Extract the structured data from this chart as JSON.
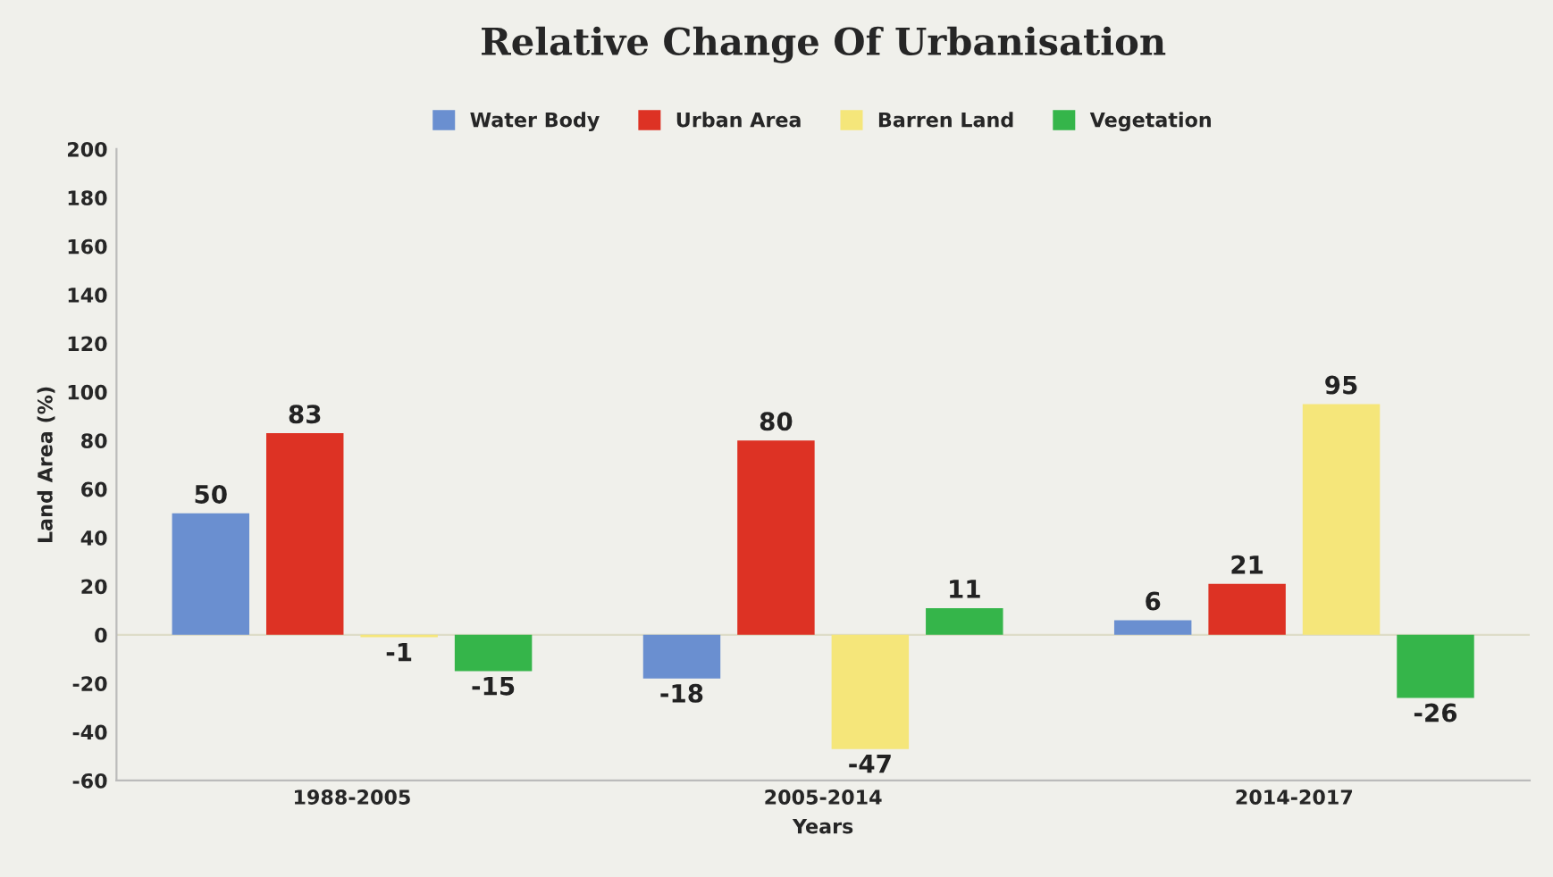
{
  "chart_data": {
    "type": "bar",
    "title": "Relative Change Of Urbanisation",
    "xlabel": "Years",
    "ylabel": "Land Area (%)",
    "categories": [
      "1988-2005",
      "2005-2014",
      "2014-2017"
    ],
    "series": [
      {
        "name": "Water Body",
        "color": "#6a8fd0",
        "values": [
          50,
          -18,
          6
        ]
      },
      {
        "name": "Urban Area",
        "color": "#dd3224",
        "values": [
          83,
          80,
          21
        ]
      },
      {
        "name": "Barren Land",
        "color": "#f5e67a",
        "values": [
          -1,
          -47,
          95
        ]
      },
      {
        "name": "Vegetation",
        "color": "#35b54a",
        "values": [
          -15,
          11,
          -26
        ]
      }
    ],
    "ylim": [
      -60,
      200
    ],
    "yticks": [
      -60,
      -40,
      -20,
      0,
      20,
      40,
      60,
      80,
      100,
      120,
      140,
      160,
      180,
      200
    ],
    "ref_lines": [
      {
        "axis": "y",
        "value": 0,
        "color": "#dddcc8"
      }
    ],
    "data_labels": true,
    "legend": "top",
    "grid": false
  }
}
